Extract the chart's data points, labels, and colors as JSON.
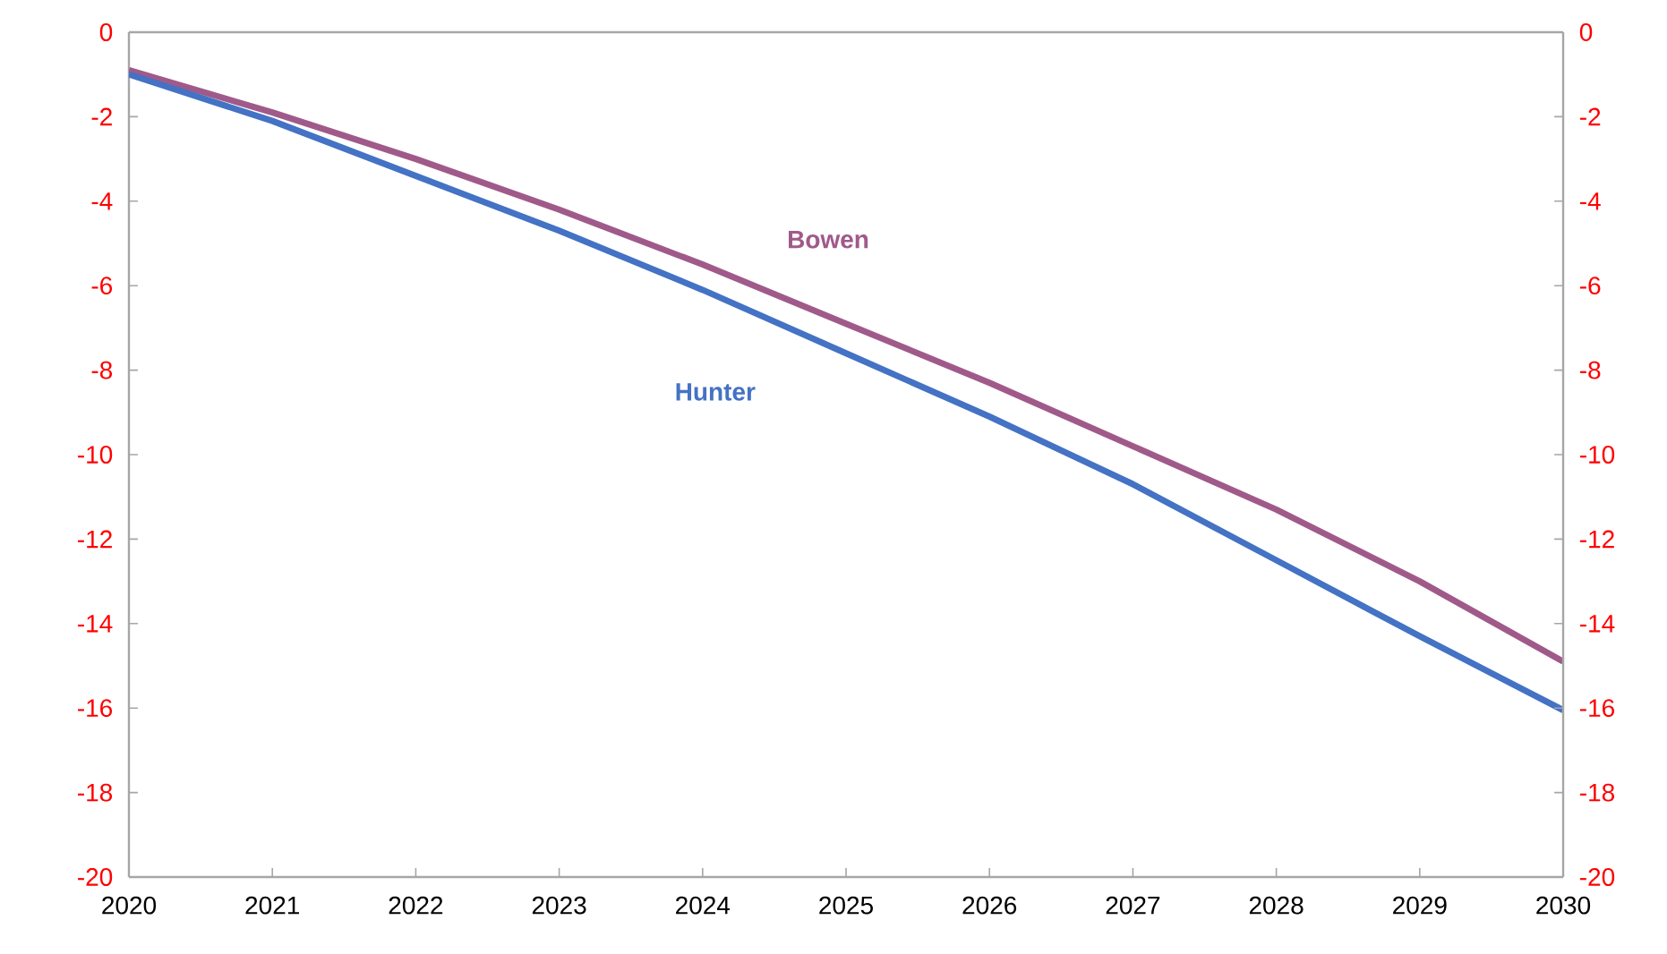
{
  "chart_data": {
    "type": "line",
    "x": [
      2020,
      2021,
      2022,
      2023,
      2024,
      2025,
      2026,
      2027,
      2028,
      2029,
      2030
    ],
    "series": [
      {
        "name": "Bowen",
        "color": "#a05a8a",
        "values": [
          -0.9,
          -1.9,
          -3.0,
          -4.2,
          -5.5,
          -6.9,
          -8.3,
          -9.8,
          -11.3,
          -13.0,
          -14.9
        ]
      },
      {
        "name": "Hunter",
        "color": "#4472c4",
        "values": [
          -1.0,
          -2.1,
          -3.4,
          -4.7,
          -6.1,
          -7.6,
          -9.1,
          -10.7,
          -12.5,
          -14.3,
          -16.05
        ]
      }
    ],
    "xlim": [
      2020,
      2030
    ],
    "xticks": [
      2020,
      2021,
      2022,
      2023,
      2024,
      2025,
      2026,
      2027,
      2028,
      2029,
      2030
    ],
    "ylim": [
      -20,
      0
    ],
    "yticks": [
      -20,
      -18,
      -16,
      -14,
      -12,
      -10,
      -8,
      -6,
      -4,
      -2,
      0
    ],
    "y2lim": [
      -20,
      0
    ],
    "y2ticks": [
      -20,
      -18,
      -16,
      -14,
      -12,
      -10,
      -8,
      -6,
      -4,
      -2,
      0
    ],
    "marker": "none",
    "line_style": "solid",
    "grid": false,
    "legend": false
  }
}
